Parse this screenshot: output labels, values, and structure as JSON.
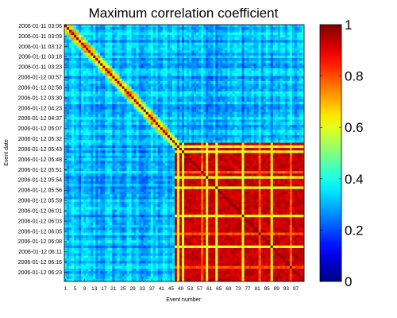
{
  "chart_data": {
    "type": "heatmap",
    "title": "Maximum correlation coefficient",
    "xlabel": "Event number",
    "ylabel": "Event date",
    "x_tick_labels": [
      "1",
      "5",
      "9",
      "13",
      "17",
      "21",
      "25",
      "29",
      "33",
      "37",
      "41",
      "45",
      "49",
      "53",
      "57",
      "61",
      "65",
      "69",
      "73",
      "77",
      "81",
      "85",
      "89",
      "93",
      "97"
    ],
    "y_tick_labels": [
      "2006-01-11 03:06",
      "2006-01-11 03:09",
      "2006-01-11 03:12",
      "2006-01-11 03:18",
      "2006-01-11 03:23",
      "2006-01-12 00:57",
      "2006-01-12 02:58",
      "2006-01-12 03:30",
      "2006-01-12 04:23",
      "2006-01-12 04:37",
      "2006-01-12 05:07",
      "2006-01-12 05:32",
      "2006-01-12 05:43",
      "2006-01-12 05:48",
      "2006-01-12 05:51",
      "2006-01-12 05:54",
      "2006-01-12 05:56",
      "2006-01-12 05:59",
      "2006-01-12 06:01",
      "2006-01-12 06:03",
      "2006-01-12 06:05",
      "2006-01-12 06:08",
      "2006-01-12 06:11",
      "2006-01-12 06:16",
      "2006-01-12 06:23"
    ],
    "n_events": 100,
    "colorbar": {
      "min": 0,
      "max": 1,
      "ticks": [
        "0",
        "0.2",
        "0.4",
        "0.6",
        "0.8",
        "1"
      ],
      "colormap": "jet"
    },
    "clusters": [
      {
        "events": [
          47,
          100
        ],
        "approx_value": 0.93
      }
    ],
    "background_approx_value": 0.3,
    "diagonal_value": 1.0,
    "legend": "colorbar-right",
    "grid": false
  }
}
